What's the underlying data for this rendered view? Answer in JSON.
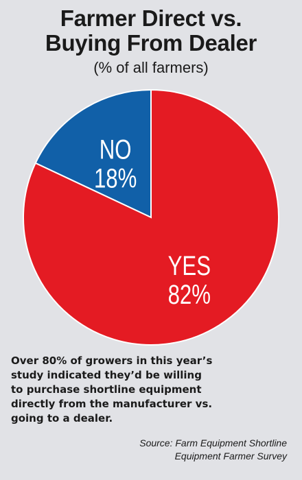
{
  "chart_data": {
    "type": "pie",
    "title": [
      "Farmer Direct vs.",
      "Buying From Dealer"
    ],
    "subtitle": "(% of all farmers)",
    "slices": [
      {
        "label": "NO",
        "value": 18,
        "value_label": "18%",
        "color": "#1160a8"
      },
      {
        "label": "YES",
        "value": 82,
        "value_label": "82%",
        "color": "#e41b23"
      }
    ],
    "start_angle_deg": 0,
    "direction": "counterclockwise",
    "legend": "none"
  },
  "note": [
    "Over 80% of growers in this year’s",
    "study indicated they’d be willing",
    "to purchase shortline equipment",
    "directly from the manufacturer vs.",
    "going to a dealer."
  ],
  "source": [
    "Source: Farm Equipment Shortline",
    "Equipment Farmer Survey"
  ],
  "colors": {
    "background": "#e1e2e6",
    "text": "#1a1a1a",
    "slice_text": "#ffffff",
    "slice_border": "#ffffff"
  }
}
